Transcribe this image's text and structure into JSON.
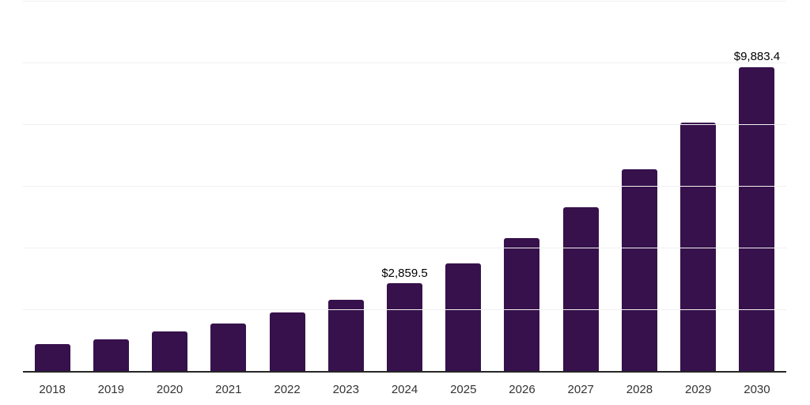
{
  "chart_data": {
    "type": "bar",
    "title": "",
    "xlabel": "",
    "ylabel": "",
    "categories": [
      "2018",
      "2019",
      "2020",
      "2021",
      "2022",
      "2023",
      "2024",
      "2025",
      "2026",
      "2027",
      "2028",
      "2029",
      "2030"
    ],
    "values": [
      890,
      1060,
      1300,
      1560,
      1920,
      2340,
      2859.5,
      3520,
      4330,
      5330,
      6560,
      8070,
      9883.4
    ],
    "value_labels": {
      "2024": "$2,859.5",
      "2030": "$9,883.4"
    },
    "ylim": [
      0,
      12000
    ],
    "gridline_values": [
      2000,
      4000,
      6000,
      8000,
      10000,
      12000
    ],
    "grid": true,
    "legend": "none",
    "colors": {
      "bar": "#36114b",
      "axis": "#262626",
      "gridline": "#f0f0f0",
      "tick_label": "#333333",
      "value_label": "#000000",
      "background": "#ffffff"
    }
  }
}
